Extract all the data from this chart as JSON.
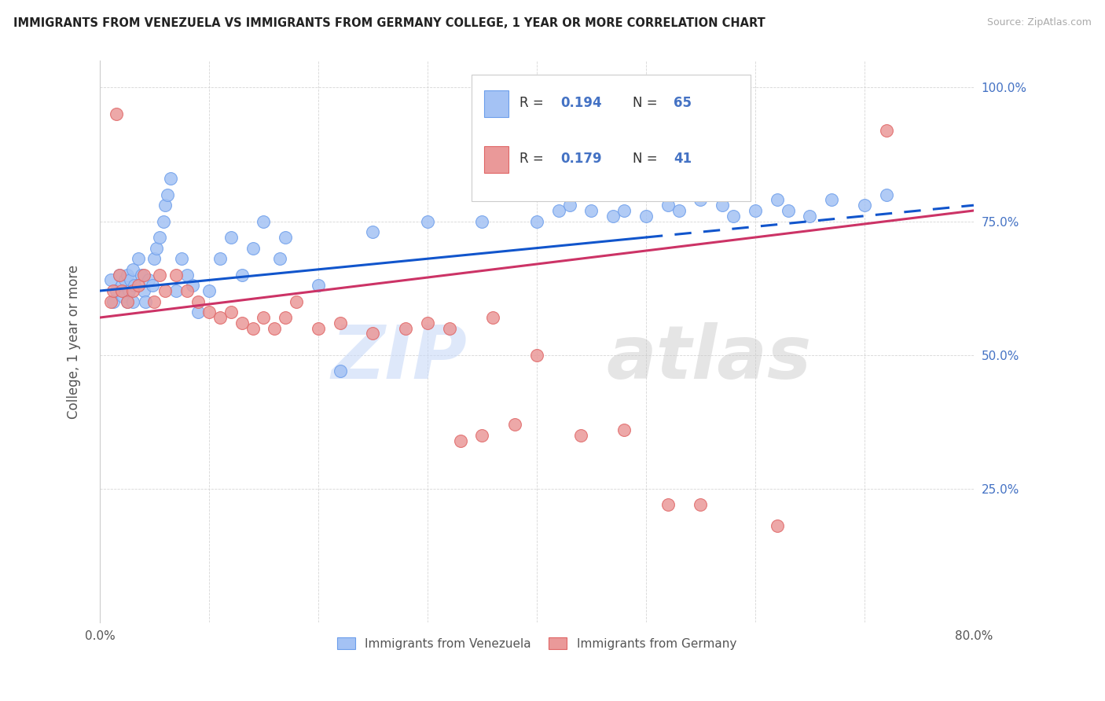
{
  "title": "IMMIGRANTS FROM VENEZUELA VS IMMIGRANTS FROM GERMANY COLLEGE, 1 YEAR OR MORE CORRELATION CHART",
  "source": "Source: ZipAtlas.com",
  "ylabel": "College, 1 year or more",
  "xmin": 0.0,
  "xmax": 80.0,
  "ymin": 0.0,
  "ymax": 105.0,
  "legend_label_blue": "Immigrants from Venezuela",
  "legend_label_pink": "Immigrants from Germany",
  "blue_color": "#a4c2f4",
  "blue_edge_color": "#6d9eeb",
  "pink_color": "#ea9999",
  "pink_edge_color": "#e06666",
  "blue_line_color": "#1155cc",
  "pink_line_color": "#cc3366",
  "blue_scatter_x": [
    1.0,
    1.2,
    1.5,
    1.8,
    2.0,
    2.1,
    2.3,
    2.5,
    2.5,
    2.7,
    2.8,
    3.0,
    3.0,
    3.2,
    3.5,
    3.8,
    4.0,
    4.2,
    4.5,
    4.8,
    5.0,
    5.2,
    5.5,
    5.8,
    6.0,
    6.2,
    6.5,
    7.0,
    7.5,
    8.0,
    8.5,
    9.0,
    10.0,
    11.0,
    12.0,
    13.0,
    14.0,
    15.0,
    16.5,
    17.0,
    20.0,
    22.0,
    25.0,
    30.0,
    35.0,
    40.0,
    42.0,
    43.0,
    44.0,
    45.0,
    47.0,
    48.0,
    50.0,
    52.0,
    53.0,
    55.0,
    57.0,
    58.0,
    60.0,
    62.0,
    63.0,
    65.0,
    67.0,
    70.0,
    72.0
  ],
  "blue_scatter_y": [
    64.0,
    60.0,
    62.0,
    65.0,
    63.0,
    61.0,
    64.0,
    60.0,
    65.0,
    62.0,
    64.0,
    66.0,
    60.0,
    63.0,
    68.0,
    65.0,
    62.0,
    60.0,
    64.0,
    63.0,
    68.0,
    70.0,
    72.0,
    75.0,
    78.0,
    80.0,
    83.0,
    62.0,
    68.0,
    65.0,
    63.0,
    58.0,
    62.0,
    68.0,
    72.0,
    65.0,
    70.0,
    75.0,
    68.0,
    72.0,
    63.0,
    47.0,
    73.0,
    75.0,
    75.0,
    75.0,
    77.0,
    78.0,
    80.0,
    77.0,
    76.0,
    77.0,
    76.0,
    78.0,
    77.0,
    79.0,
    78.0,
    76.0,
    77.0,
    79.0,
    77.0,
    76.0,
    79.0,
    78.0,
    80.0
  ],
  "pink_scatter_x": [
    1.0,
    1.2,
    1.5,
    1.8,
    2.0,
    2.5,
    3.0,
    3.5,
    4.0,
    5.0,
    5.5,
    6.0,
    7.0,
    8.0,
    9.0,
    10.0,
    11.0,
    12.0,
    13.0,
    14.0,
    15.0,
    16.0,
    17.0,
    18.0,
    20.0,
    22.0,
    25.0,
    28.0,
    30.0,
    32.0,
    33.0,
    35.0,
    36.0,
    38.0,
    40.0,
    44.0,
    48.0,
    52.0,
    55.0,
    62.0,
    72.0
  ],
  "pink_scatter_y": [
    60.0,
    62.0,
    95.0,
    65.0,
    62.0,
    60.0,
    62.0,
    63.0,
    65.0,
    60.0,
    65.0,
    62.0,
    65.0,
    62.0,
    60.0,
    58.0,
    57.0,
    58.0,
    56.0,
    55.0,
    57.0,
    55.0,
    57.0,
    60.0,
    55.0,
    56.0,
    54.0,
    55.0,
    56.0,
    55.0,
    34.0,
    35.0,
    57.0,
    37.0,
    50.0,
    35.0,
    36.0,
    22.0,
    22.0,
    18.0,
    92.0
  ],
  "blue_trend_y0": 62.0,
  "blue_trend_y1": 78.0,
  "blue_solid_x_end": 50.0,
  "pink_trend_y0": 57.0,
  "pink_trend_y1": 77.0
}
